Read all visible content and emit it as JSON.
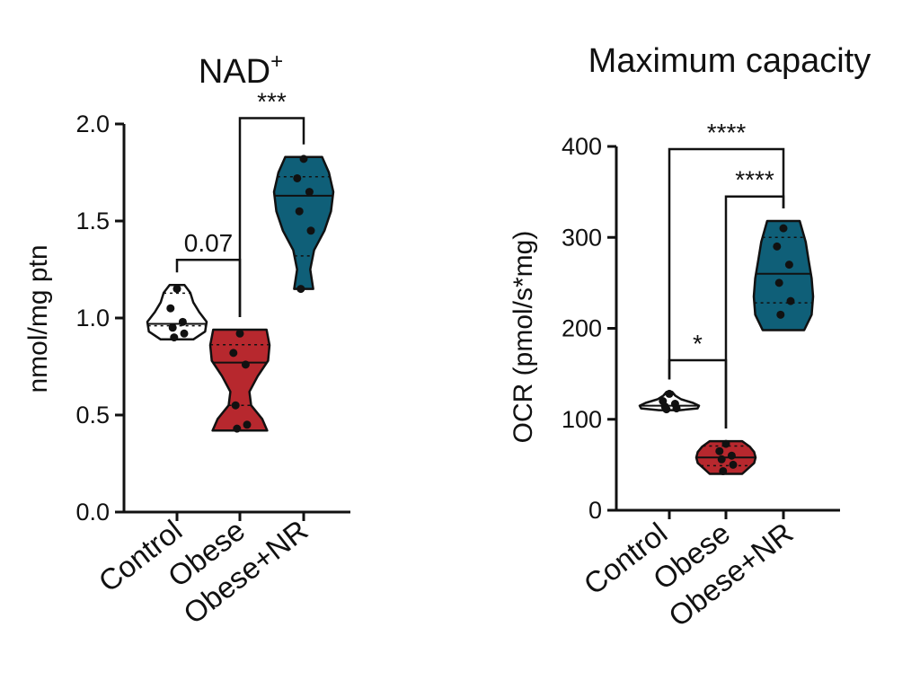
{
  "chart_data": [
    {
      "type": "violin",
      "title": "NAD",
      "title_superscript": "+",
      "ylabel": "nmol/mg ptn",
      "ylim": [
        0,
        2.0
      ],
      "y_ticks": [
        "0.0",
        "0.5",
        "1.0",
        "1.5",
        "2.0"
      ],
      "categories": [
        "Control",
        "Obese",
        "Obese+NR"
      ],
      "series": [
        {
          "category": "Control",
          "color": "#ffffff",
          "min": 0.89,
          "max": 1.17,
          "median": 0.97,
          "points": [
            1.15,
            1.05,
            0.98,
            0.95,
            0.92,
            0.9
          ],
          "profile": [
            [
              0.89,
              0.55
            ],
            [
              0.93,
              0.95
            ],
            [
              0.98,
              1.0
            ],
            [
              1.03,
              0.75
            ],
            [
              1.08,
              0.55
            ],
            [
              1.13,
              0.45
            ],
            [
              1.17,
              0.25
            ]
          ]
        },
        {
          "category": "Obese",
          "color": "#b7282e",
          "min": 0.42,
          "max": 0.94,
          "median": 0.77,
          "points": [
            0.92,
            0.82,
            0.76,
            0.55,
            0.45,
            0.43
          ],
          "profile": [
            [
              0.42,
              0.92
            ],
            [
              0.48,
              0.75
            ],
            [
              0.55,
              0.38
            ],
            [
              0.62,
              0.32
            ],
            [
              0.7,
              0.6
            ],
            [
              0.78,
              0.95
            ],
            [
              0.86,
              1.0
            ],
            [
              0.94,
              0.9
            ]
          ]
        },
        {
          "category": "Obese+NR",
          "color": "#0f5f78",
          "min": 1.15,
          "max": 1.83,
          "median": 1.63,
          "points": [
            1.82,
            1.72,
            1.65,
            1.55,
            1.45,
            1.15
          ],
          "profile": [
            [
              1.15,
              0.32
            ],
            [
              1.25,
              0.22
            ],
            [
              1.35,
              0.35
            ],
            [
              1.45,
              0.7
            ],
            [
              1.55,
              0.92
            ],
            [
              1.65,
              1.0
            ],
            [
              1.75,
              0.85
            ],
            [
              1.83,
              0.62
            ]
          ]
        }
      ],
      "annotations": [
        {
          "from": "Control",
          "to": "Obese",
          "label": "0.07",
          "y": 1.3
        },
        {
          "from": "Obese",
          "to": "Obese+NR",
          "label": "***",
          "y": 2.03
        }
      ]
    },
    {
      "type": "violin",
      "title": "Maximum capacity",
      "ylabel": "OCR (pmol/s*mg)",
      "ylim": [
        0,
        400
      ],
      "y_ticks": [
        "0",
        "100",
        "200",
        "300",
        "400"
      ],
      "categories": [
        "Control",
        "Obese",
        "Obese+NR"
      ],
      "series": [
        {
          "category": "Control",
          "color": "#ffffff",
          "min": 110,
          "max": 130,
          "median": 115,
          "points": [
            128,
            120,
            117,
            114,
            112,
            111
          ],
          "profile": [
            [
              110,
              0.35
            ],
            [
              112,
              0.95
            ],
            [
              115,
              1.0
            ],
            [
              118,
              0.8
            ],
            [
              122,
              0.4
            ],
            [
              126,
              0.2
            ],
            [
              130,
              0.1
            ]
          ]
        },
        {
          "category": "Obese",
          "color": "#b7282e",
          "min": 40,
          "max": 76,
          "median": 58,
          "points": [
            73,
            65,
            60,
            56,
            50,
            43
          ],
          "profile": [
            [
              40,
              0.55
            ],
            [
              46,
              0.75
            ],
            [
              52,
              0.95
            ],
            [
              58,
              1.0
            ],
            [
              64,
              0.95
            ],
            [
              70,
              0.8
            ],
            [
              76,
              0.55
            ]
          ]
        },
        {
          "category": "Obese+NR",
          "color": "#0f5f78",
          "min": 198,
          "max": 318,
          "median": 260,
          "points": [
            310,
            290,
            270,
            250,
            230,
            215
          ],
          "profile": [
            [
              198,
              0.7
            ],
            [
              215,
              0.95
            ],
            [
              235,
              1.0
            ],
            [
              255,
              0.95
            ],
            [
              275,
              0.85
            ],
            [
              295,
              0.75
            ],
            [
              318,
              0.55
            ]
          ]
        }
      ],
      "annotations": [
        {
          "from": "Control",
          "to": "Obese",
          "label": "*",
          "y": 165
        },
        {
          "from": "Obese",
          "to": "Obese+NR",
          "label": "****",
          "y": 345
        },
        {
          "from": "Control",
          "to": "Obese+NR",
          "label": "****",
          "y": 397
        }
      ]
    }
  ]
}
